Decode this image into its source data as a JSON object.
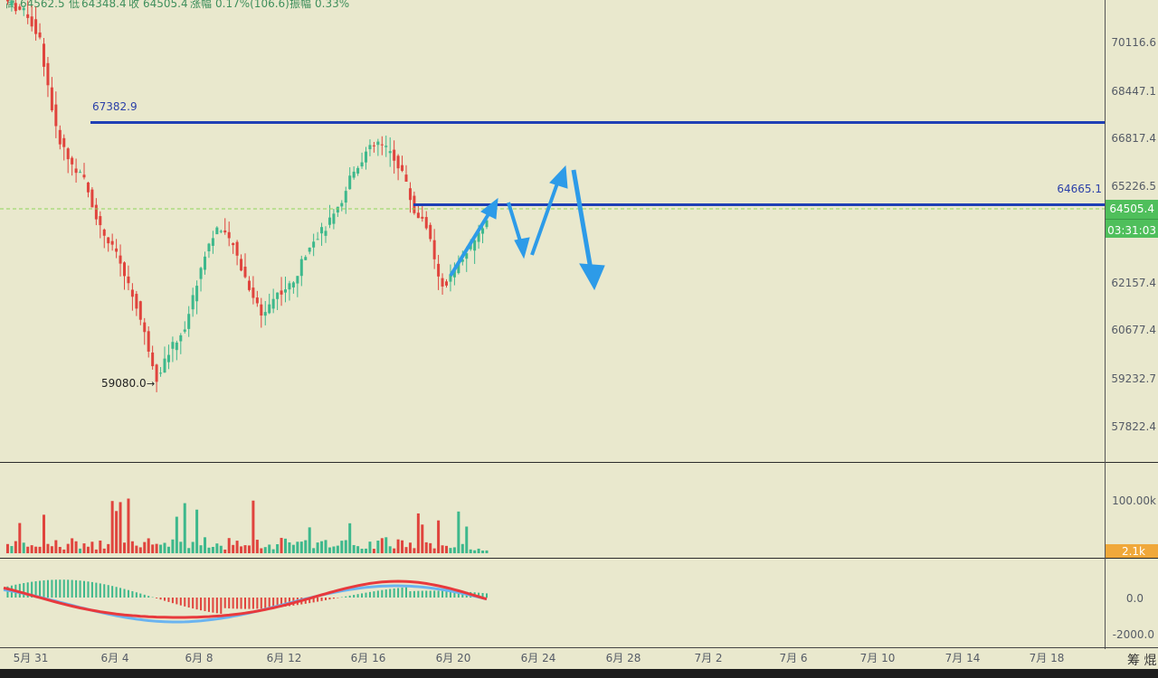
{
  "header": {
    "high_label": "高",
    "high_value": "64562.5",
    "low_label": "低",
    "low_value": "64348.4",
    "close_label": "收",
    "close_value": "64505.4",
    "change_label": "涨幅",
    "change_value": "0.17%(106.6)",
    "amplitude_label": "振幅",
    "amplitude_value": "0.33%"
  },
  "price_axis": {
    "ticks": [
      "70116.6",
      "68447.1",
      "66817.4",
      "65226.5",
      "62157.4",
      "60677.4",
      "59232.7",
      "57822.4"
    ],
    "current_price": "64505.4",
    "countdown": "03:31:03"
  },
  "volume_axis": {
    "tick": "100.00k",
    "current": "2.1k"
  },
  "macd_axis": {
    "ticks": [
      "0.0",
      "-2000.0"
    ]
  },
  "x_axis": {
    "labels": [
      "5月 31",
      "6月 4",
      "6月 8",
      "6月 12",
      "6月 16",
      "6月 20",
      "6月 24",
      "6月 28",
      "7月 2",
      "7月 6",
      "7月 10",
      "7月 14",
      "7月 18"
    ]
  },
  "annotations": {
    "upper_line_label": "67382.9",
    "lower_line_label": "64665.1",
    "low_marker": "59080.0"
  },
  "footer": {
    "right_chars": "筹 焜"
  },
  "colors": {
    "background": "#e9e8cd",
    "up": "#3db88c",
    "down": "#e0443d",
    "level_line": "#1f3fb5",
    "arrow": "#2d9be8",
    "price_badge": "#4fbf5b",
    "volume_badge": "#f0a83a",
    "macd_dif": "#e8393c",
    "macd_dea": "#6ab4f0"
  },
  "chart_data": {
    "type": "candlestick",
    "timeframe_note": "",
    "x_date_range": [
      "5月 31",
      "6月 21"
    ],
    "price_range": [
      57000,
      71500
    ],
    "horizontal_levels": [
      67382.9,
      64665.1
    ],
    "current_price": 64505.4,
    "low_marker_value": 59080.0,
    "projection_arrows": [
      {
        "from_price": 62300,
        "to_price": 65000,
        "direction": "up"
      },
      {
        "from_price": 65000,
        "to_price": 63300,
        "direction": "down"
      },
      {
        "from_price": 63300,
        "to_price": 66200,
        "direction": "up"
      },
      {
        "from_price": 66200,
        "to_price": 62100,
        "direction": "down"
      }
    ],
    "volume_current": "2.1k",
    "macd_range": [
      -2500,
      1000
    ]
  }
}
